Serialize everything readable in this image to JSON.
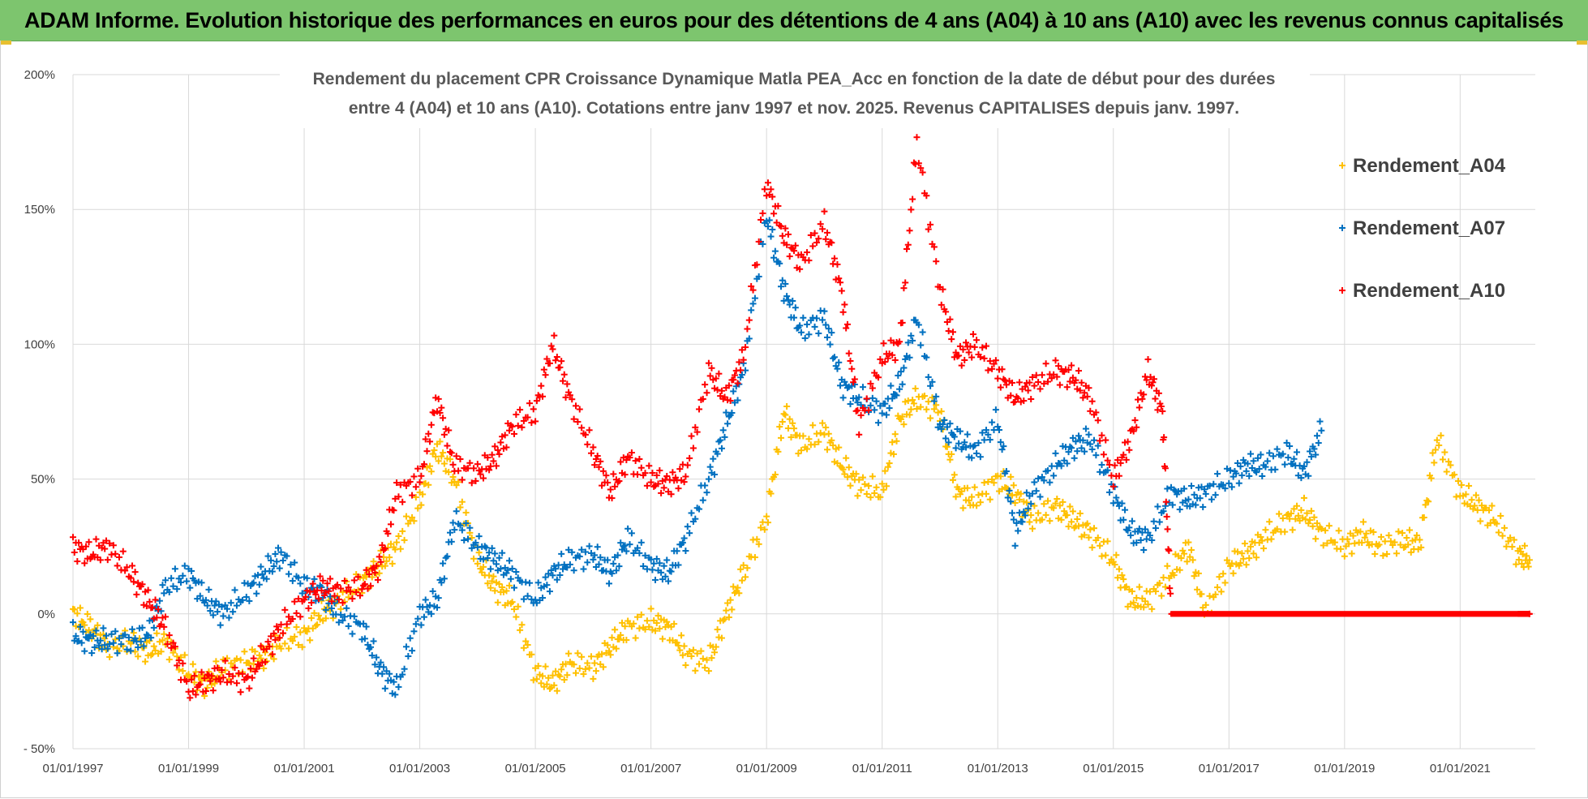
{
  "banner": {
    "title": "ADAM Informe. Evolution historique des performances en euros pour des détentions de 4 ans (A04) à 10 ans (A10) avec les revenus connus capitalisés"
  },
  "chart_data": {
    "type": "scatter",
    "title_lines": [
      "Rendement du placement CPR Croissance Dynamique Matla PEA_Acc en fonction de la date de début pour des durées",
      "entre 4 (A04) et 10 ans (A10). Cotations entre janv 1997 et nov. 2025. Revenus CAPITALISES depuis janv. 1997."
    ],
    "xlabel": "",
    "ylabel": "",
    "x_range": [
      1997.0,
      2022.3
    ],
    "ylim": [
      -50,
      200
    ],
    "y_ticks": [
      -50,
      0,
      50,
      100,
      150,
      200
    ],
    "y_tick_labels": [
      "- 50%",
      "0%",
      "50%",
      "100%",
      "150%",
      "200%"
    ],
    "x_ticks": [
      1997,
      1999,
      2001,
      2003,
      2005,
      2007,
      2009,
      2011,
      2013,
      2015,
      2017,
      2019,
      2021
    ],
    "x_tick_labels": [
      "01/01/1997",
      "01/01/1999",
      "01/01/2001",
      "01/01/2003",
      "01/01/2005",
      "01/01/2007",
      "01/01/2009",
      "01/01/2011",
      "01/01/2013",
      "01/01/2015",
      "01/01/2017",
      "01/01/2019",
      "01/01/2021"
    ],
    "grid": true,
    "legend_position": "top-right",
    "marker": "+",
    "series": [
      {
        "name": "Rendement_A04",
        "color": "#ffc000",
        "x": [
          1997.0,
          1997.3,
          1997.6,
          1998.0,
          1998.3,
          1998.6,
          1999.0,
          1999.3,
          1999.6,
          2000.0,
          2000.3,
          2000.6,
          2001.0,
          2001.3,
          2001.6,
          2002.0,
          2002.3,
          2002.6,
          2003.0,
          2003.3,
          2003.6,
          2004.0,
          2004.3,
          2004.6,
          2005.0,
          2005.3,
          2005.6,
          2006.0,
          2006.3,
          2006.6,
          2007.0,
          2007.3,
          2007.6,
          2008.0,
          2008.3,
          2008.6,
          2009.0,
          2009.3,
          2009.6,
          2010.0,
          2010.3,
          2010.6,
          2011.0,
          2011.3,
          2011.6,
          2012.0,
          2012.3,
          2012.6,
          2013.0,
          2013.3,
          2013.6,
          2014.0,
          2014.3,
          2014.6,
          2015.0,
          2015.3,
          2015.6,
          2016.0,
          2016.3,
          2016.6,
          2017.0,
          2017.3,
          2017.6,
          2018.0,
          2018.3,
          2018.6,
          2019.0,
          2019.3,
          2019.6,
          2020.0,
          2020.3,
          2020.6,
          2021.0,
          2021.3,
          2021.6,
          2022.0,
          2022.2
        ],
        "values": [
          0,
          -5,
          -12,
          -10,
          -14,
          -10,
          -22,
          -26,
          -20,
          -18,
          -16,
          -10,
          -8,
          0,
          5,
          12,
          18,
          25,
          42,
          62,
          50,
          20,
          10,
          5,
          -22,
          -26,
          -18,
          -20,
          -12,
          -5,
          -3,
          -5,
          -15,
          -18,
          0,
          15,
          35,
          75,
          62,
          68,
          55,
          48,
          45,
          72,
          80,
          75,
          45,
          42,
          50,
          45,
          35,
          40,
          35,
          30,
          20,
          5,
          5,
          15,
          25,
          0,
          18,
          22,
          28,
          35,
          38,
          30,
          25,
          30,
          25,
          27,
          26,
          65,
          45,
          40,
          35,
          22,
          20
        ]
      },
      {
        "name": "Rendement_A07",
        "color": "#0070c0",
        "x": [
          1997.0,
          1997.3,
          1997.6,
          1998.0,
          1998.3,
          1998.6,
          1999.0,
          1999.3,
          1999.6,
          2000.0,
          2000.3,
          2000.6,
          2001.0,
          2001.3,
          2001.6,
          2002.0,
          2002.3,
          2002.6,
          2003.0,
          2003.3,
          2003.6,
          2004.0,
          2004.3,
          2004.6,
          2005.0,
          2005.3,
          2005.6,
          2006.0,
          2006.3,
          2006.6,
          2007.0,
          2007.3,
          2007.6,
          2008.0,
          2008.3,
          2008.6,
          2009.0,
          2009.3,
          2009.6,
          2010.0,
          2010.3,
          2010.6,
          2011.0,
          2011.3,
          2011.6,
          2012.0,
          2012.3,
          2012.6,
          2013.0,
          2013.3,
          2013.6,
          2014.0,
          2014.3,
          2014.6,
          2015.0,
          2015.3,
          2015.6,
          2016.0,
          2016.3,
          2016.6,
          2017.0,
          2017.3,
          2017.6,
          2018.0,
          2018.3,
          2018.6
        ],
        "values": [
          -8,
          -10,
          -10,
          -10,
          -8,
          10,
          15,
          5,
          0,
          8,
          15,
          22,
          10,
          8,
          0,
          -5,
          -20,
          -28,
          0,
          5,
          35,
          25,
          20,
          15,
          5,
          15,
          20,
          22,
          15,
          28,
          18,
          15,
          28,
          50,
          70,
          90,
          148,
          120,
          105,
          110,
          85,
          80,
          75,
          85,
          110,
          70,
          65,
          60,
          72,
          30,
          45,
          55,
          62,
          65,
          45,
          30,
          28,
          45,
          42,
          45,
          50,
          55,
          55,
          60,
          52,
          68
        ]
      },
      {
        "name": "Rendement_A10",
        "color": "#ff0000",
        "x": [
          1997.0,
          1997.3,
          1997.6,
          1998.0,
          1998.3,
          1998.6,
          1999.0,
          1999.3,
          1999.6,
          2000.0,
          2000.3,
          2000.6,
          2001.0,
          2001.3,
          2001.6,
          2002.0,
          2002.3,
          2002.6,
          2003.0,
          2003.3,
          2003.6,
          2004.0,
          2004.3,
          2004.6,
          2005.0,
          2005.3,
          2005.6,
          2006.0,
          2006.3,
          2006.6,
          2007.0,
          2007.3,
          2007.6,
          2008.0,
          2008.3,
          2008.6,
          2009.0,
          2009.3,
          2009.6,
          2010.0,
          2010.3,
          2010.6,
          2011.0,
          2011.3,
          2011.6,
          2012.0,
          2012.3,
          2012.6,
          2013.0,
          2013.3,
          2013.6,
          2014.0,
          2014.3,
          2014.6,
          2015.0,
          2015.3,
          2015.6,
          2015.85,
          2016.0,
          2016.5,
          2017.0,
          2017.5,
          2018.0,
          2018.5,
          2019.0,
          2019.5,
          2020.0,
          2020.5,
          2021.0,
          2021.5,
          2022.0,
          2022.2
        ],
        "values": [
          25,
          22,
          25,
          15,
          5,
          -5,
          -28,
          -25,
          -22,
          -25,
          -15,
          -5,
          5,
          10,
          8,
          10,
          18,
          45,
          50,
          80,
          55,
          52,
          58,
          70,
          75,
          100,
          80,
          60,
          45,
          58,
          50,
          48,
          52,
          90,
          80,
          95,
          160,
          140,
          130,
          145,
          120,
          70,
          95,
          100,
          175,
          120,
          95,
          100,
          90,
          80,
          85,
          90,
          88,
          80,
          50,
          65,
          90,
          75,
          0,
          0,
          0,
          0,
          0,
          0,
          0,
          0,
          0,
          0,
          0,
          0,
          0,
          0
        ]
      }
    ]
  }
}
